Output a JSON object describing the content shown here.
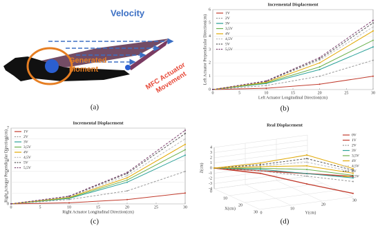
{
  "diagram": {
    "velocity": "Velocity",
    "moment_label": [
      "Generated",
      "Moment"
    ],
    "actuator_label": [
      "MFC Actuator",
      "Movement"
    ]
  },
  "captions": [
    "(a)",
    "(b)",
    "(c)",
    "(d)"
  ],
  "chart_data": [
    {
      "type": "line",
      "title": "Incremental Displacement",
      "xlabel": "Left Actuator Longitudinal Direction(cm)",
      "ylabel": "Left Actuator Perpendicular Direction(cm)",
      "x": [
        0,
        10,
        20,
        30
      ],
      "xlim": [
        0,
        30
      ],
      "xticks": [
        0,
        5,
        10,
        15,
        20,
        25,
        30
      ],
      "ylim": [
        0,
        6
      ],
      "yticks": [
        0,
        1,
        2,
        3,
        4,
        5,
        6
      ],
      "series": [
        {
          "name": "1V",
          "color": "#c0392b",
          "dashed": false,
          "values": [
            0,
            0.1,
            0.4,
            1.0
          ]
        },
        {
          "name": "2V",
          "color": "#999999",
          "dashed": true,
          "values": [
            0,
            0.3,
            1.0,
            2.2
          ]
        },
        {
          "name": "3V",
          "color": "#2aa198",
          "dashed": false,
          "values": [
            0,
            0.45,
            1.5,
            3.2
          ]
        },
        {
          "name": "3,5V",
          "color": "#6ab04c",
          "dashed": false,
          "values": [
            0,
            0.5,
            1.7,
            3.7
          ]
        },
        {
          "name": "4V",
          "color": "#e1a800",
          "dashed": false,
          "values": [
            0,
            0.55,
            2.0,
            4.4
          ]
        },
        {
          "name": "4,5V",
          "color": "#bbbbbb",
          "dashed": true,
          "values": [
            0,
            0.6,
            2.2,
            4.7
          ]
        },
        {
          "name": "5V",
          "color": "#555555",
          "dashed": true,
          "values": [
            0,
            0.62,
            2.3,
            5.0
          ]
        },
        {
          "name": "5,5V",
          "color": "#7b3f6e",
          "dashed": true,
          "values": [
            0,
            0.65,
            2.4,
            5.2
          ]
        }
      ]
    },
    {
      "type": "line",
      "title": "Incremental Displacement",
      "xlabel": "Right Actuator Longitudinal Direction(cm)",
      "ylabel": "Right Actuator Perpendicular Direction(cm)",
      "x": [
        0,
        10,
        20,
        30
      ],
      "xlim": [
        0,
        30
      ],
      "xticks": [
        0,
        5,
        10,
        15,
        20,
        25,
        30
      ],
      "ylim": [
        0,
        7
      ],
      "yticks": [
        0,
        1,
        2,
        3,
        4,
        5,
        6,
        7
      ],
      "series": [
        {
          "name": "1V",
          "color": "#c0392b",
          "dashed": false,
          "values": [
            0,
            0.1,
            0.4,
            1.0
          ]
        },
        {
          "name": "2V",
          "color": "#999999",
          "dashed": true,
          "values": [
            0,
            0.4,
            1.2,
            3.0
          ]
        },
        {
          "name": "3V",
          "color": "#2aa198",
          "dashed": false,
          "values": [
            0,
            0.5,
            2.0,
            4.5
          ]
        },
        {
          "name": "3,5V",
          "color": "#6ab04c",
          "dashed": false,
          "values": [
            0,
            0.55,
            2.2,
            5.0
          ]
        },
        {
          "name": "4V",
          "color": "#e1a800",
          "dashed": false,
          "values": [
            0,
            0.6,
            2.4,
            5.5
          ]
        },
        {
          "name": "4,5V",
          "color": "#bbbbbb",
          "dashed": true,
          "values": [
            0,
            0.65,
            2.6,
            6.0
          ]
        },
        {
          "name": "5V",
          "color": "#555555",
          "dashed": true,
          "values": [
            0,
            0.7,
            2.8,
            6.5
          ]
        },
        {
          "name": "5,5V",
          "color": "#7b3f6e",
          "dashed": true,
          "values": [
            0,
            0.72,
            2.9,
            6.8
          ]
        }
      ]
    },
    {
      "type": "line3d",
      "title": "Real Displacement",
      "xlabel": "X(cm)",
      "ylabel": "Y(cm)",
      "zlabel": "Z(cm)",
      "x": [
        0,
        10,
        20,
        30
      ],
      "y": [
        0,
        10,
        20,
        30
      ],
      "xticks": [
        0,
        10,
        20,
        30
      ],
      "yticks": [
        0,
        10,
        20,
        30
      ],
      "zlim": [
        -4,
        4
      ],
      "zticks": [
        -4,
        -3,
        -2,
        -1,
        0,
        1,
        2,
        3,
        4
      ],
      "series": [
        {
          "name": "0V",
          "color": "#c0392b",
          "dashed": false,
          "values": [
            0,
            0,
            0,
            0
          ]
        },
        {
          "name": "1V",
          "color": "#c0392b",
          "dashed": false,
          "values": [
            0,
            -0.5,
            -2,
            -3.3
          ]
        },
        {
          "name": "2V",
          "color": "#999999",
          "dashed": true,
          "values": [
            0,
            0,
            -0.5,
            -1
          ]
        },
        {
          "name": "3V",
          "color": "#2aa198",
          "dashed": false,
          "values": [
            0,
            0.3,
            0,
            -0.3
          ]
        },
        {
          "name": "3,5V",
          "color": "#6ab04c",
          "dashed": false,
          "values": [
            0,
            0.5,
            0.8,
            0.2
          ]
        },
        {
          "name": "4V",
          "color": "#e1a800",
          "dashed": false,
          "values": [
            0,
            0.8,
            1.5,
            0.6
          ]
        },
        {
          "name": "4,5V",
          "color": "#bbbbbb",
          "dashed": true,
          "values": [
            0,
            1,
            2.2,
            0.9
          ]
        },
        {
          "name": "5V",
          "color": "#555555",
          "dashed": true,
          "values": [
            0,
            1.2,
            2.9,
            1.2
          ]
        },
        {
          "name": "5,5V",
          "color": "#e1a800",
          "dashed": false,
          "values": [
            0,
            1.5,
            3.6,
            1.5
          ]
        }
      ]
    }
  ]
}
